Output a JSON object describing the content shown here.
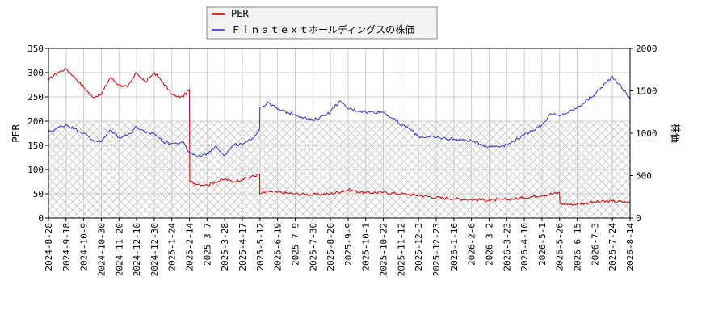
{
  "chart_data": {
    "type": "line",
    "legend": {
      "placement": "top-center",
      "entries": [
        "PER",
        "Ｆｉｎａｔｅｘｔホールディングスの株価"
      ]
    },
    "x_ticks": [
      "2024-8-28",
      "2024-9-18",
      "2024-10-9",
      "2024-10-30",
      "2024-11-20",
      "2024-12-10",
      "2024-12-30",
      "2025-1-24",
      "2025-2-14",
      "2025-3-7",
      "2025-3-28",
      "2025-4-17",
      "2025-5-12",
      "2025-6-19",
      "2025-7-9",
      "2025-7-30",
      "2025-8-20",
      "2025-9-9",
      "2025-10-1",
      "2025-10-22",
      "2025-11-12",
      "2025-12-3",
      "2025-12-23",
      "2026-1-16",
      "2026-2-6",
      "2026-3-2",
      "2026-3-23",
      "2026-4-10",
      "2026-5-1",
      "2026-5-26",
      "2026-6-15",
      "2026-7-3",
      "2026-7-24",
      "2026-8-14"
    ],
    "left_axis": {
      "label": "PER",
      "ylim": [
        0,
        350
      ],
      "ticks": [
        0,
        50,
        100,
        150,
        200,
        250,
        300,
        350
      ]
    },
    "right_axis": {
      "label": "株価",
      "ylim": [
        0,
        2000
      ],
      "ticks": [
        0,
        500,
        1000,
        1500,
        2000
      ]
    },
    "hatched_band": {
      "axis": "left",
      "from": 0,
      "to": 200
    },
    "grid": true,
    "series": [
      {
        "name": "PER",
        "axis": "left",
        "color": "#cc0000",
        "x": [
          0,
          0.5,
          1,
          1.5,
          2,
          2.5,
          3,
          3.5,
          4,
          4.5,
          5,
          5.5,
          6,
          6.5,
          7,
          7.3,
          7.6,
          8,
          8.02,
          8.5,
          9,
          9.5,
          10,
          10.5,
          11,
          11.5,
          11.98,
          12,
          12.5,
          13,
          14,
          15,
          16,
          17,
          18,
          19,
          20,
          20.5,
          21,
          22,
          23,
          24,
          25,
          26,
          27,
          28,
          29,
          29.02,
          29.5,
          30,
          31,
          32,
          33
        ],
        "values": [
          285,
          300,
          308,
          290,
          270,
          250,
          255,
          290,
          275,
          270,
          300,
          280,
          300,
          280,
          255,
          250,
          250,
          265,
          75,
          70,
          68,
          75,
          80,
          75,
          80,
          85,
          90,
          50,
          55,
          53,
          50,
          48,
          50,
          58,
          52,
          53,
          50,
          48,
          47,
          42,
          40,
          38,
          37,
          38,
          42,
          47,
          52,
          30,
          28,
          29,
          33,
          35,
          32
        ]
      },
      {
        "name": "Ｆｉｎａｔｅｘｔホールディングスの株価",
        "axis": "right",
        "color": "#3333cc",
        "x": [
          0,
          0.5,
          1,
          1.5,
          2,
          2.5,
          3,
          3.5,
          4,
          4.5,
          5,
          5.5,
          6,
          6.5,
          7,
          7.3,
          7.6,
          8,
          8.5,
          9,
          9.5,
          10,
          10.5,
          11,
          11.5,
          11.98,
          12,
          12.5,
          13,
          14,
          15,
          16,
          16.5,
          17,
          18,
          19,
          19.5,
          20,
          20.5,
          21,
          22,
          23,
          24,
          25,
          26,
          27,
          28,
          28.5,
          29,
          30,
          31,
          32,
          32.5,
          33
        ],
        "values": [
          1010,
          1060,
          1100,
          1050,
          1000,
          920,
          900,
          1040,
          950,
          980,
          1080,
          1000,
          1000,
          900,
          880,
          880,
          900,
          770,
          730,
          760,
          850,
          740,
          860,
          870,
          920,
          1050,
          1300,
          1360,
          1280,
          1220,
          1150,
          1250,
          1380,
          1290,
          1250,
          1250,
          1180,
          1100,
          1050,
          960,
          950,
          930,
          910,
          840,
          860,
          980,
          1100,
          1230,
          1200,
          1300,
          1460,
          1670,
          1550,
          1400
        ]
      }
    ]
  }
}
